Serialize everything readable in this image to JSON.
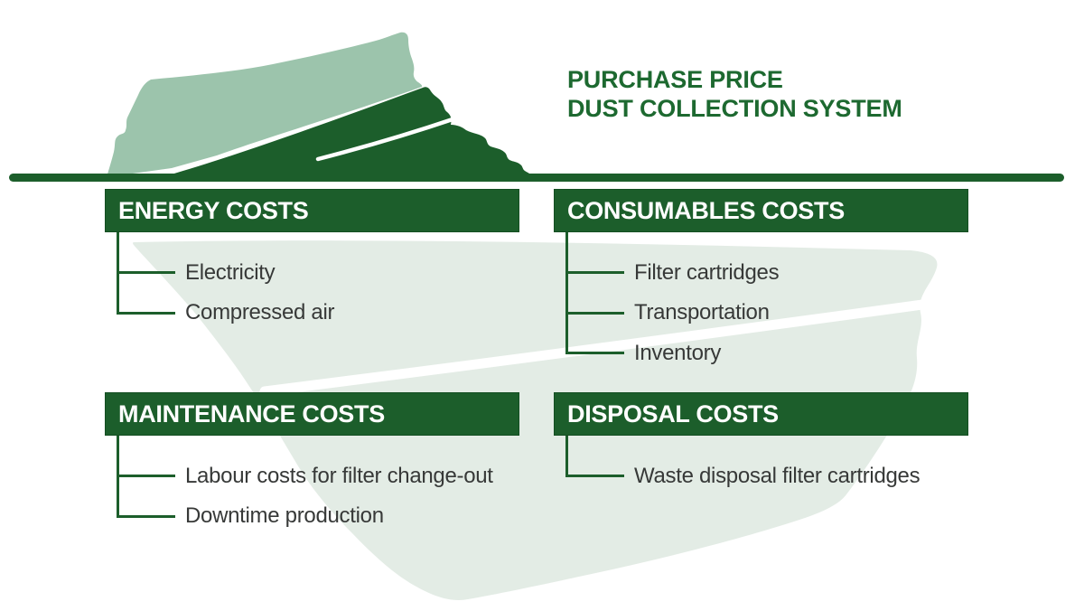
{
  "title": {
    "line1": "PURCHASE PRICE",
    "line2": "DUST COLLECTION SYSTEM"
  },
  "sections": [
    {
      "id": "energy",
      "label": "ENERGY COSTS",
      "items": [
        "Electricity",
        "Compressed air"
      ]
    },
    {
      "id": "consumables",
      "label": "CONSUMABLES COSTS",
      "items": [
        "Filter cartridges",
        "Transportation",
        "Inventory"
      ]
    },
    {
      "id": "maintenance",
      "label": "MAINTENANCE COSTS",
      "items": [
        "Labour costs for filter change-out",
        "Downtime production"
      ]
    },
    {
      "id": "disposal",
      "label": "DISPOSAL COSTS",
      "items": [
        "Waste disposal filter cartridges"
      ]
    }
  ],
  "colors": {
    "dark_green": "#1c5e2b",
    "title_green": "#1d6930",
    "light_green": "#9cc4ac",
    "pale_green": "#e3ece5",
    "item_text": "#373938",
    "bar_text": "#ffffff",
    "background": "#ffffff"
  }
}
